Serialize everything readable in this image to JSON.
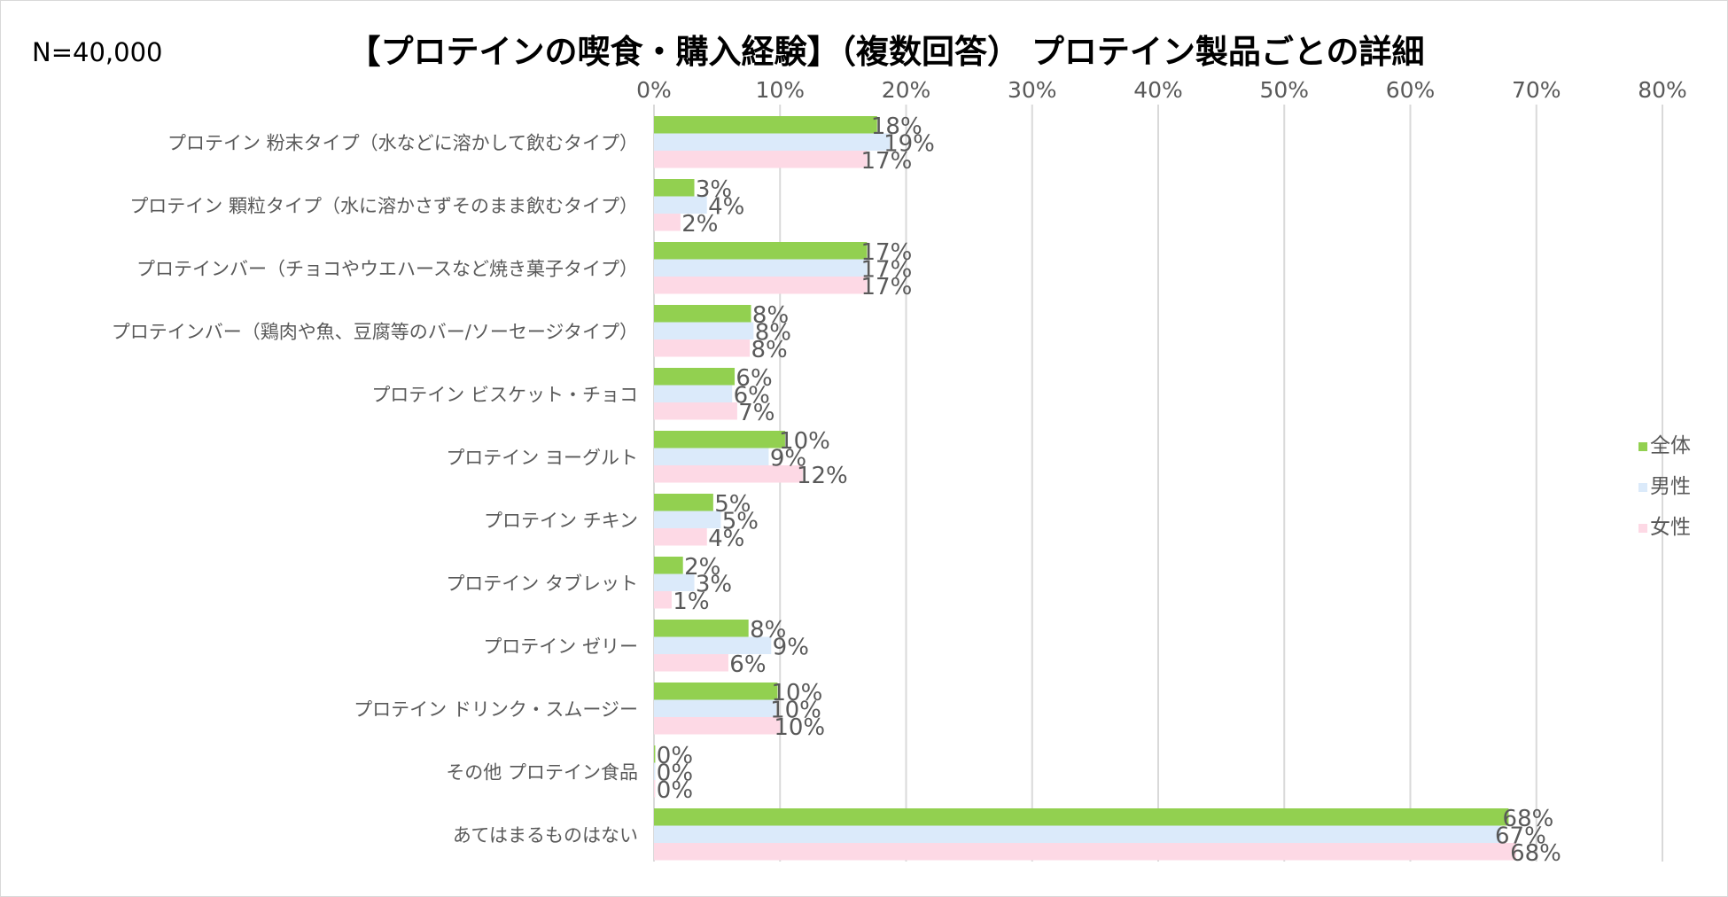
{
  "chart_data": {
    "type": "bar",
    "orientation": "horizontal",
    "title": "【プロテインの喫食・購入経験】（複数回答） プロテイン製品ごとの詳細",
    "note": "N=40,000",
    "categories": [
      "プロテイン 粉末タイプ（水などに溶かして飲むタイプ）",
      "プロテイン 顆粒タイプ（水に溶かさずそのまま飲むタイプ）",
      "プロテインバー（チョコやウエハースなど焼き菓子タイプ）",
      "プロテインバー（鶏肉や魚、豆腐等のバー/ソーセージタイプ）",
      "プロテイン ビスケット・チョコ",
      "プロテイン ヨーグルト",
      "プロテイン チキン",
      "プロテイン タブレット",
      "プロテイン ゼリー",
      "プロテイン ドリンク・スムージー",
      "その他 プロテイン食品",
      "あてはまるものはない"
    ],
    "series": [
      {
        "name": "全体",
        "color": "#92d050",
        "values": [
          17.7,
          3.2,
          16.9,
          7.7,
          6.4,
          10.4,
          4.7,
          2.3,
          7.5,
          9.8,
          0.1,
          67.8
        ]
      },
      {
        "name": "男性",
        "color": "#dbeafa",
        "values": [
          18.7,
          4.2,
          16.9,
          7.9,
          6.2,
          9.1,
          5.3,
          3.2,
          9.3,
          9.7,
          0.1,
          67.2
        ]
      },
      {
        "name": "女性",
        "color": "#fdd9e5",
        "values": [
          16.9,
          2.1,
          16.9,
          7.6,
          6.6,
          11.8,
          4.2,
          1.4,
          5.9,
          10.0,
          0.1,
          68.4
        ]
      }
    ],
    "data_labels": [
      [
        "18%",
        "3%",
        "17%",
        "8%",
        "6%",
        "10%",
        "5%",
        "2%",
        "8%",
        "10%",
        "0%",
        "68%"
      ],
      [
        "19%",
        "4%",
        "17%",
        "8%",
        "6%",
        "9%",
        "5%",
        "3%",
        "9%",
        "10%",
        "0%",
        "67%"
      ],
      [
        "17%",
        "2%",
        "17%",
        "8%",
        "7%",
        "12%",
        "4%",
        "1%",
        "6%",
        "10%",
        "0%",
        "68%"
      ]
    ],
    "xlim": [
      0,
      80
    ],
    "xticks": [
      "0%",
      "10%",
      "20%",
      "30%",
      "40%",
      "50%",
      "60%",
      "70%",
      "80%"
    ],
    "grid": true,
    "legend_position": "right",
    "colors": {
      "grid": "#d9d9d9",
      "text": "#595959",
      "title": "#000000",
      "frame": "#d9d9d9"
    }
  }
}
